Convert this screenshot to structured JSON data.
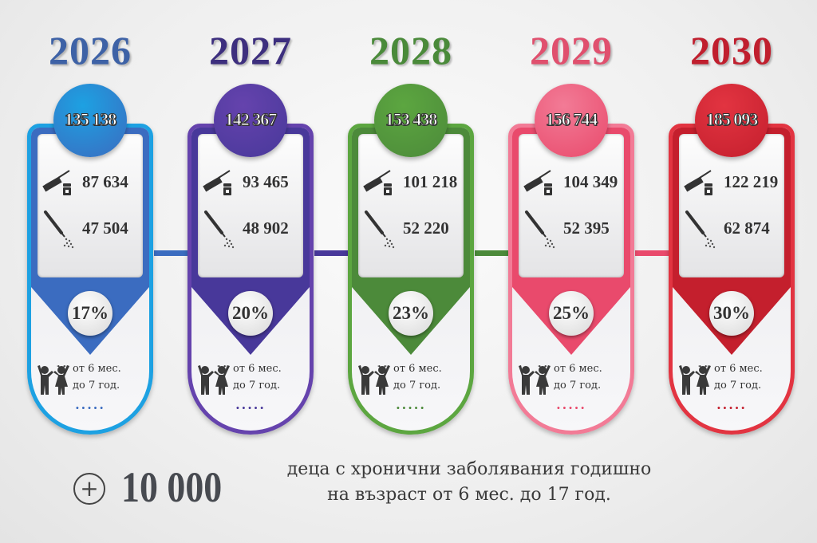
{
  "columns": [
    {
      "year": "2026",
      "total": "135 138",
      "vaccine": "87 634",
      "spray": "47 504",
      "percent": "17%",
      "age_line1": "от 6 мес.",
      "age_line2": "до 7 год.",
      "dots": ".....",
      "color": "#3b6cc0",
      "border": "#1da1e2",
      "year_color": "#3e62a6"
    },
    {
      "year": "2027",
      "total": "142 367",
      "vaccine": "93 465",
      "spray": "48 902",
      "percent": "20%",
      "age_line1": "от 6 мес.",
      "age_line2": "до 7 год.",
      "dots": ".....",
      "color": "#48389a",
      "border": "#6543ad",
      "year_color": "#3d2f7e"
    },
    {
      "year": "2028",
      "total": "153 438",
      "vaccine": "101 218",
      "spray": "52 220",
      "percent": "23%",
      "age_line1": "от 6 мес.",
      "age_line2": "до 7 год.",
      "dots": ".....",
      "color": "#4c8a3a",
      "border": "#5ca640",
      "year_color": "#4a8a3a"
    },
    {
      "year": "2029",
      "total": "156 744",
      "vaccine": "104 349",
      "spray": "52 395",
      "percent": "25%",
      "age_line1": "от 6 мес.",
      "age_line2": "до 7 год.",
      "dots": ".....",
      "color": "#e94a6c",
      "border": "#f27b96",
      "year_color": "#e0506e"
    },
    {
      "year": "2030",
      "total": "185 093",
      "vaccine": "122 219",
      "spray": "62 874",
      "percent": "30%",
      "age_line1": "от 6 мес.",
      "age_line2": "до 7 год.",
      "dots": ".....",
      "color": "#c41f2d",
      "border": "#e23441",
      "year_color": "#c01f2e"
    }
  ],
  "icons": {
    "vaccine": "syringe-icon",
    "spray": "nasal-spray-icon",
    "kids": "children-icon",
    "plus": "plus-circle-icon"
  },
  "footer": {
    "plus_symbol": "+",
    "number": "10 000",
    "line1": "деца с хронични заболявания годишно",
    "line2": "на възраст от 6 мес. до 17 год."
  }
}
